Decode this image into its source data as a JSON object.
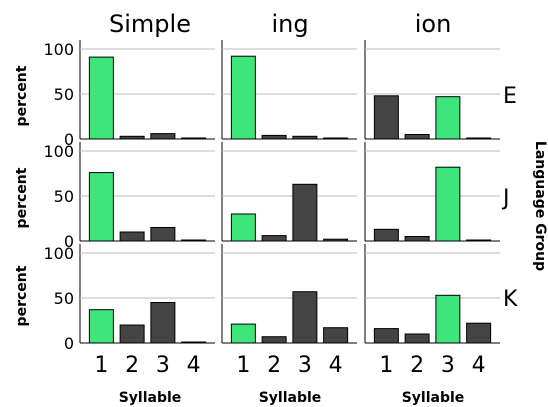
{
  "chart_data": {
    "type": "bar",
    "columns": [
      "Simple",
      "ing",
      "ion"
    ],
    "rows": [
      "E",
      "J",
      "K"
    ],
    "row_axis_label": "Language Group",
    "ylabel": "percent",
    "xlabel": "Syllable",
    "categories": [
      "1",
      "2",
      "3",
      "4"
    ],
    "ylim": [
      0,
      110
    ],
    "yticks": [
      0,
      50,
      100
    ],
    "grid": true,
    "colors": {
      "highlight": "#3de57a",
      "other": "#444444",
      "grid": "#bdbdbd"
    },
    "panels": [
      {
        "row": "E",
        "column": "Simple",
        "values": [
          91,
          3,
          6,
          0.5
        ],
        "highlight_index": 0
      },
      {
        "row": "E",
        "column": "ing",
        "values": [
          92,
          4,
          3,
          0.5
        ],
        "highlight_index": 0
      },
      {
        "row": "E",
        "column": "ion",
        "values": [
          48,
          5,
          47,
          0.5
        ],
        "highlight_index": 2
      },
      {
        "row": "J",
        "column": "Simple",
        "values": [
          76,
          10,
          15,
          0.5
        ],
        "highlight_index": 0
      },
      {
        "row": "J",
        "column": "ing",
        "values": [
          30,
          6,
          63,
          2
        ],
        "highlight_index": 0
      },
      {
        "row": "J",
        "column": "ion",
        "values": [
          13,
          5,
          82,
          1
        ],
        "highlight_index": 2
      },
      {
        "row": "K",
        "column": "Simple",
        "values": [
          37,
          20,
          45,
          0.5
        ],
        "highlight_index": 0
      },
      {
        "row": "K",
        "column": "ing",
        "values": [
          21,
          7,
          57,
          17
        ],
        "highlight_index": 0
      },
      {
        "row": "K",
        "column": "ion",
        "values": [
          16,
          10,
          53,
          22
        ],
        "highlight_index": 2
      }
    ]
  }
}
